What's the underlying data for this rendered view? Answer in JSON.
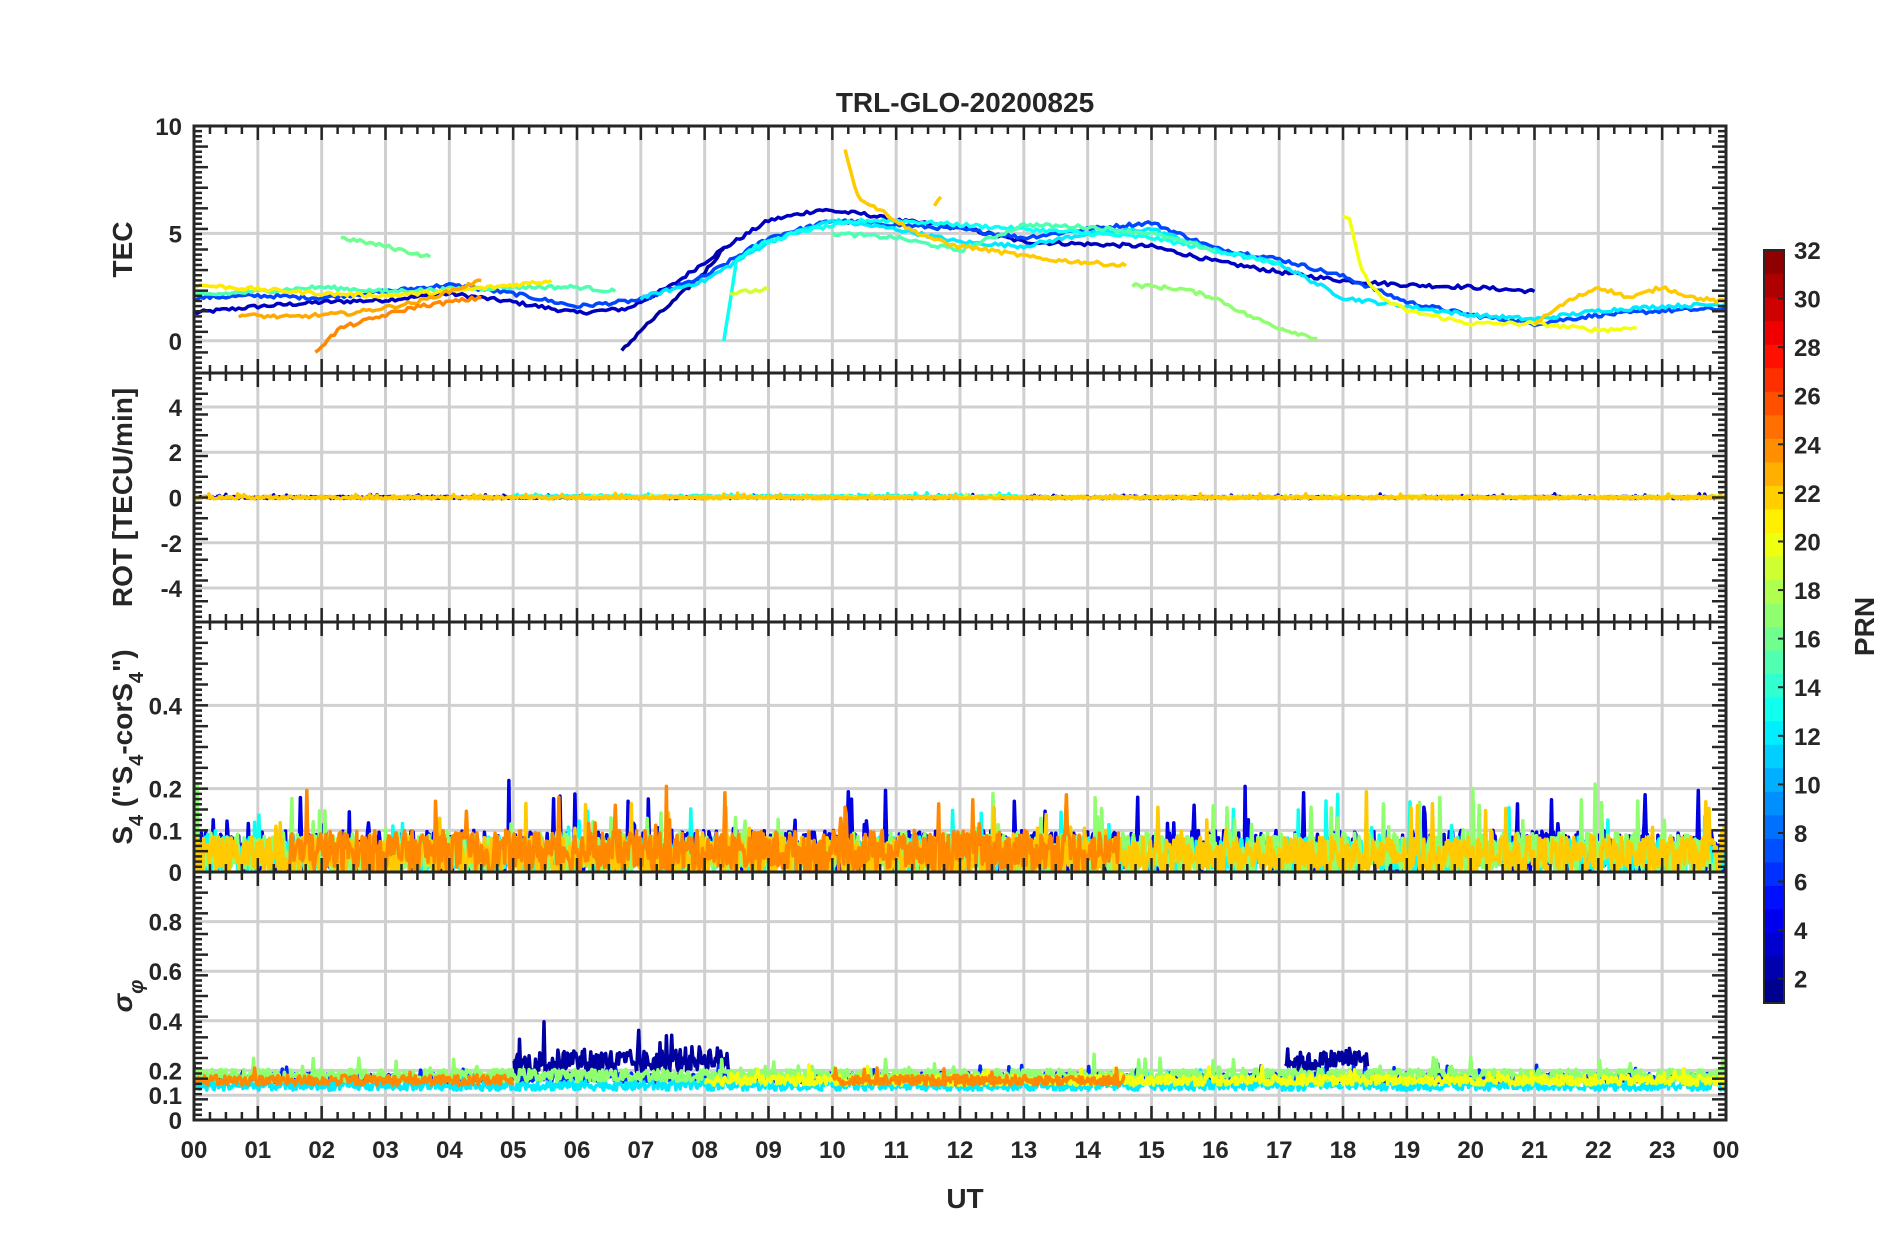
{
  "chart_data": {
    "type": "line",
    "title": "TRL-GLO-20200825",
    "xlabel": "UT",
    "x_ticks": [
      "00",
      "01",
      "02",
      "03",
      "04",
      "05",
      "06",
      "07",
      "08",
      "09",
      "10",
      "11",
      "12",
      "13",
      "14",
      "15",
      "16",
      "17",
      "18",
      "19",
      "20",
      "21",
      "22",
      "23",
      "00"
    ],
    "xlim": [
      0,
      24
    ],
    "panels": [
      {
        "id": "tec",
        "ylabel": "TEC",
        "ylim": [
          -1.5,
          10
        ],
        "y_ticks": [
          0,
          5,
          10
        ],
        "y_tick_labels": [
          "0",
          "5",
          "10"
        ],
        "series": [
          {
            "name": "PRN 3",
            "prn": 3,
            "x": [
              0,
              1,
              2,
              3,
              4,
              5,
              6,
              6.8,
              7.5,
              8.3,
              9,
              9.8,
              10.5,
              11,
              12,
              13,
              14,
              15,
              16,
              17,
              18,
              19,
              20,
              21
            ],
            "y": [
              1.3,
              1.6,
              1.8,
              1.9,
              2.2,
              1.8,
              1.3,
              1.5,
              2.6,
              4.3,
              5.6,
              6.1,
              5.9,
              5.6,
              5.3,
              4.6,
              4.5,
              4.4,
              3.7,
              3.2,
              2.8,
              2.6,
              2.5,
              2.3
            ]
          },
          {
            "name": "PRN 2",
            "prn": 2,
            "x": [
              6.7,
              7,
              7.5,
              8,
              8.3
            ],
            "y": [
              -0.5,
              0.5,
              1.8,
              3.2,
              4.3
            ]
          },
          {
            "name": "PRN 7",
            "prn": 7,
            "x": [
              0,
              1,
              2,
              3,
              4,
              5,
              6,
              7,
              8,
              9,
              10,
              11,
              12,
              13,
              14,
              15,
              16,
              17,
              18,
              19,
              20,
              21,
              22,
              23,
              24
            ],
            "y": [
              2.0,
              2.1,
              2.0,
              2.3,
              2.6,
              2.2,
              1.6,
              1.9,
              3.0,
              4.8,
              5.6,
              5.4,
              5.2,
              4.8,
              5.2,
              5.5,
              4.3,
              3.8,
              3.0,
              1.8,
              1.2,
              0.8,
              1.2,
              1.4,
              1.5
            ]
          },
          {
            "name": "PRN 12",
            "prn": 12,
            "x": [
              7,
              8,
              9,
              10,
              11,
              12,
              13,
              14,
              15,
              16,
              17,
              18,
              19,
              20,
              21,
              22,
              23,
              24
            ],
            "y": [
              2.0,
              2.8,
              4.6,
              5.6,
              5.2,
              4.6,
              4.4,
              5.0,
              5.2,
              4.2,
              3.6,
              2.0,
              1.6,
              1.2,
              1.0,
              1.4,
              1.6,
              1.7
            ]
          },
          {
            "name": "PRN 13",
            "prn": 13,
            "x": [
              8.3,
              8.5,
              8.8,
              9.5,
              10.5,
              11,
              12,
              13,
              14,
              15,
              16,
              17
            ],
            "y": [
              0,
              3.8,
              4.4,
              5.1,
              5.6,
              5.6,
              5.4,
              5.2,
              5.0,
              4.8,
              4.2,
              3.6
            ]
          },
          {
            "name": "PRN 15",
            "prn": 15,
            "x": [
              0,
              1,
              2,
              3,
              4,
              5,
              6,
              6.6
            ],
            "y": [
              2.1,
              2.3,
              2.5,
              2.3,
              2.4,
              2.5,
              2.5,
              2.3
            ]
          },
          {
            "name": "PRN 15b",
            "prn": 15,
            "x": [
              10,
              11,
              12,
              13,
              14,
              15,
              16
            ],
            "y": [
              5.0,
              4.8,
              4.2,
              5.4,
              5.3,
              5.0,
              4.2
            ]
          },
          {
            "name": "PRN 16",
            "prn": 16,
            "x": [
              2.3,
              3,
              3.7
            ],
            "y": [
              4.8,
              4.4,
              3.9
            ]
          },
          {
            "name": "PRN 17",
            "prn": 17,
            "x": [
              14.7,
              15.5,
              16,
              16.5,
              17,
              17.6
            ],
            "y": [
              2.6,
              2.4,
              2.0,
              1.2,
              0.6,
              0.1
            ]
          },
          {
            "name": "PRN 19",
            "prn": 19,
            "x": [
              8.4,
              9
            ],
            "y": [
              2.2,
              2.4
            ]
          },
          {
            "name": "PRN 20",
            "prn": 20,
            "x": [
              18,
              18.1,
              18.3,
              18.6,
              19,
              20,
              21,
              22,
              22.6
            ],
            "y": [
              5.8,
              5.6,
              3.2,
              2.0,
              1.4,
              0.8,
              0.8,
              0.5,
              0.6
            ]
          },
          {
            "name": "PRN 21",
            "prn": 21,
            "x": [
              0,
              1,
              2,
              3,
              4,
              5,
              5.6
            ],
            "y": [
              2.6,
              2.4,
              2.2,
              2.1,
              2.3,
              2.6,
              2.8
            ]
          },
          {
            "name": "PRN 22",
            "prn": 22,
            "x": [
              10.2,
              10.4,
              10.8,
              11.2,
              11.8,
              12.5,
              13.3,
              14.2,
              14.6
            ],
            "y": [
              8.9,
              6.7,
              6.0,
              5.2,
              4.5,
              4.2,
              3.8,
              3.6,
              3.5
            ]
          },
          {
            "name": "PRN 22b",
            "prn": 22,
            "x": [
              11.6,
              11.7
            ],
            "y": [
              6.3,
              6.7
            ]
          },
          {
            "name": "PRN 23",
            "prn": 23,
            "x": [
              0.7,
              1.5,
              2.5,
              3.5,
              4.5
            ],
            "y": [
              1.2,
              1.1,
              1.3,
              1.8,
              2.8
            ]
          },
          {
            "name": "PRN 24",
            "prn": 24,
            "x": [
              1.9,
              2.3,
              3,
              3.5,
              4.5
            ],
            "y": [
              -0.5,
              0.6,
              1.2,
              1.6,
              2.0
            ]
          },
          {
            "name": "PRN 22c",
            "prn": 22,
            "x": [
              21,
              21.5,
              22,
              22.5,
              23,
              23.5,
              24
            ],
            "y": [
              0.8,
              1.8,
              2.5,
              2.0,
              2.5,
              2.0,
              1.8
            ]
          }
        ]
      },
      {
        "id": "rot",
        "ylabel": "ROT [TECU/min]",
        "ylim": [
          -5.5,
          5.5
        ],
        "y_ticks": [
          -4,
          -2,
          0,
          2,
          4
        ],
        "y_tick_labels": [
          "-4",
          "-2",
          "0",
          "2",
          "4"
        ],
        "series": [
          {
            "name": "PRN 3",
            "prn": 3,
            "x": [
              0,
              24
            ],
            "y": [
              0,
              0
            ],
            "noise": 0.05
          },
          {
            "name": "PRN 13",
            "prn": 13,
            "x": [
              5,
              13
            ],
            "y": [
              0.05,
              0.05
            ],
            "noise": 0.05
          },
          {
            "name": "PRN 19",
            "prn": 19,
            "x": [
              6,
              24
            ],
            "y": [
              0,
              0
            ],
            "noise": 0.05
          },
          {
            "name": "PRN 22",
            "prn": 22,
            "x": [
              0,
              24
            ],
            "y": [
              0,
              0
            ],
            "noise": 0.06
          }
        ]
      },
      {
        "id": "s4",
        "ylabel": "S4 (\"S4-corS4\")",
        "ylim": [
          0,
          0.6
        ],
        "y_ticks": [
          0,
          0.1,
          0.2,
          0.4
        ],
        "y_tick_labels": [
          "0",
          "0.1",
          "0.2",
          "0.4"
        ],
        "series": [
          {
            "name": "PRN 4",
            "prn": 4,
            "x": [
              0,
              24
            ],
            "y": [
              0.05,
              0.05
            ],
            "noise": 0.05
          },
          {
            "name": "PRN 13",
            "prn": 13,
            "x": [
              0,
              24
            ],
            "y": [
              0.04,
              0.04
            ],
            "noise": 0.045
          },
          {
            "name": "PRN 17",
            "prn": 17,
            "x": [
              0,
              24
            ],
            "y": [
              0.045,
              0.045
            ],
            "noise": 0.05
          },
          {
            "name": "PRN 22",
            "prn": 22,
            "x": [
              0,
              24
            ],
            "y": [
              0.04,
              0.04
            ],
            "noise": 0.045
          },
          {
            "name": "PRN 24",
            "prn": 24,
            "x": [
              1.5,
              5,
              10,
              14.5
            ],
            "y": [
              0.05,
              0.05,
              0.05,
              0.05
            ],
            "noise": 0.05
          }
        ]
      },
      {
        "id": "sigma",
        "ylabel": "σφ",
        "ylim": [
          0,
          1
        ],
        "y_ticks": [
          0,
          0.1,
          0.2,
          0.4,
          0.6,
          0.8
        ],
        "y_tick_labels": [
          "0",
          "0.1",
          "0.2",
          "0.4",
          "0.6",
          "0.8"
        ],
        "series": [
          {
            "name": "PRN 6",
            "prn": 6,
            "x": [
              0,
              24
            ],
            "y": [
              0.17,
              0.17
            ],
            "noise": 0.02
          },
          {
            "name": "PRN 2",
            "prn": 2,
            "x": [
              5,
              6,
              7,
              8,
              8.4
            ],
            "y": [
              0.22,
              0.24,
              0.23,
              0.25,
              0.24
            ],
            "noise": 0.05
          },
          {
            "name": "PRN 2b",
            "prn": 2,
            "x": [
              17.1,
              17.5,
              18,
              18.4
            ],
            "y": [
              0.24,
              0.23,
              0.25,
              0.24
            ],
            "noise": 0.04
          },
          {
            "name": "PRN 12",
            "prn": 12,
            "x": [
              0,
              24
            ],
            "y": [
              0.14,
              0.14
            ],
            "noise": 0.02
          },
          {
            "name": "PRN 17",
            "prn": 17,
            "x": [
              0,
              24
            ],
            "y": [
              0.18,
              0.18
            ],
            "noise": 0.025
          },
          {
            "name": "PRN 20",
            "prn": 20,
            "x": [
              8,
              24
            ],
            "y": [
              0.16,
              0.16
            ],
            "noise": 0.02
          },
          {
            "name": "PRN 24",
            "prn": 24,
            "x": [
              0,
              5
            ],
            "y": [
              0.16,
              0.16
            ],
            "noise": 0.02
          },
          {
            "name": "PRN 24b",
            "prn": 24,
            "x": [
              10,
              14.6
            ],
            "y": [
              0.16,
              0.16
            ],
            "noise": 0.02
          }
        ]
      }
    ],
    "colorbar": {
      "label": "PRN",
      "range": [
        1,
        32
      ],
      "ticks": [
        2,
        4,
        6,
        8,
        10,
        12,
        14,
        16,
        18,
        20,
        22,
        24,
        26,
        28,
        30,
        32
      ],
      "tick_labels": [
        "2",
        "4",
        "6",
        "8",
        "10",
        "12",
        "14",
        "16",
        "18",
        "20",
        "22",
        "24",
        "26",
        "28",
        "30",
        "32"
      ],
      "colormap": "jet"
    }
  }
}
